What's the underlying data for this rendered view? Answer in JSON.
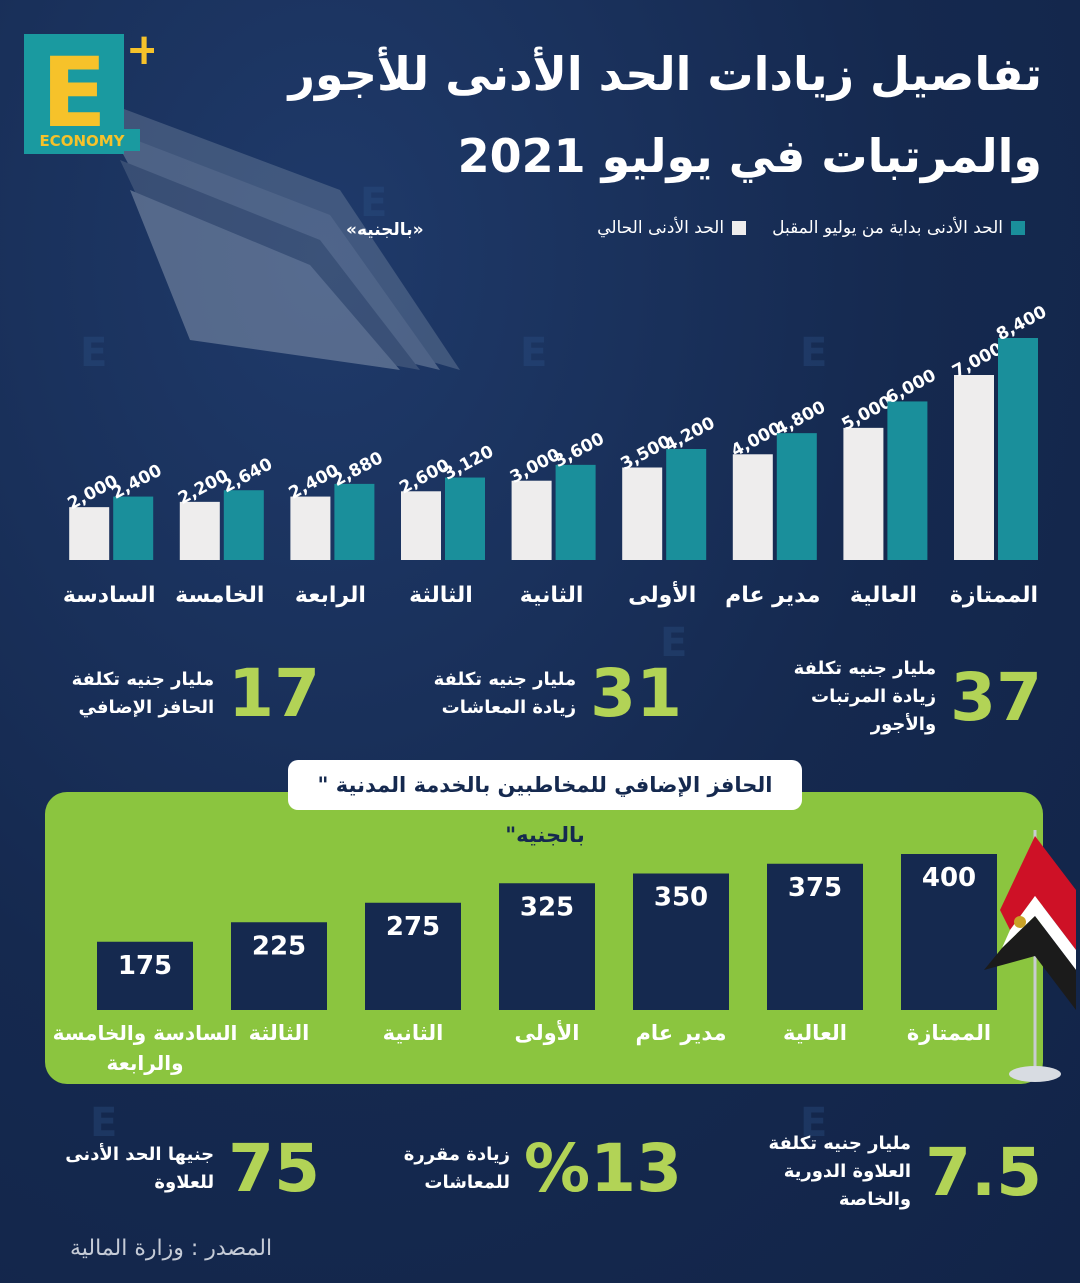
{
  "logo": {
    "letter": "E",
    "plus": "+",
    "word": "ECONOMY"
  },
  "title": {
    "line1": "تفاصيل زيادات الحد الأدنى للأجور",
    "line2": "والمرتبات في يوليو 2021"
  },
  "unit_label": "«بالجنيه»",
  "colors": {
    "teal": "#1a8f9b",
    "white_bar": "#eeeded",
    "navy": "#15294f",
    "green_panel": "#8bc53f",
    "green_text": "#b2d356",
    "flag_red": "#ce1126",
    "flag_black": "#000000"
  },
  "chart_data": [
    {
      "type": "bar",
      "categories": [
        "الممتازة",
        "العالية",
        "مدير عام",
        "الأولى",
        "الثانية",
        "الثالثة",
        "الرابعة",
        "الخامسة",
        "السادسة"
      ],
      "series": [
        {
          "name": "الحد الأدنى الحالي",
          "color": "#eeeded",
          "values": [
            7000,
            5000,
            4000,
            3500,
            3000,
            2600,
            2400,
            2200,
            2000
          ],
          "labels": [
            "7,000",
            "5,000",
            "4,000",
            "3,500",
            "3,000",
            "2,600",
            "2,400",
            "2,200",
            "2,000"
          ]
        },
        {
          "name": "الحد الأدنى بداية من يوليو المقبل",
          "color": "#1a8f9b",
          "values": [
            8400,
            6000,
            4800,
            4200,
            3600,
            3120,
            2880,
            2640,
            2400
          ],
          "labels": [
            "8,400",
            "6,000",
            "4,800",
            "4,200",
            "3,600",
            "3,120",
            "2,880",
            "2,640",
            "2,400"
          ]
        }
      ],
      "legend": "top-right",
      "grid": false
    },
    {
      "type": "bar",
      "title": "الحافز الإضافي للمخاطبين بالخدمة المدنية \" بالجنيه\"",
      "categories": [
        "الممتازة",
        "العالية",
        "مدير عام",
        "الأولى",
        "الثانية",
        "الثالثة",
        "السادسة والخامسة والرابعة"
      ],
      "values": [
        400,
        375,
        350,
        325,
        275,
        225,
        175
      ],
      "grid": false
    }
  ],
  "stats_top": [
    {
      "num": "37",
      "text": "مليار جنيه  تكلفة زيادة المرتبات والأجور"
    },
    {
      "num": "31",
      "text": "مليار جنيه تكلفة زيادة المعاشات"
    },
    {
      "num": "17",
      "text": "مليار جنيه تكلفة الحافز الإضافي"
    }
  ],
  "stats_bottom": [
    {
      "num": "7.5",
      "text": "مليار جنيه تكلفة العلاوة الدورية والخاصة"
    },
    {
      "num": "%13",
      "text": "زيادة مقررة للمعاشات"
    },
    {
      "num": "75",
      "text": "جنيها الحد الأدنى للعلاوة"
    }
  ],
  "source": "المصدر : وزارة المالية",
  "watermark": "E"
}
